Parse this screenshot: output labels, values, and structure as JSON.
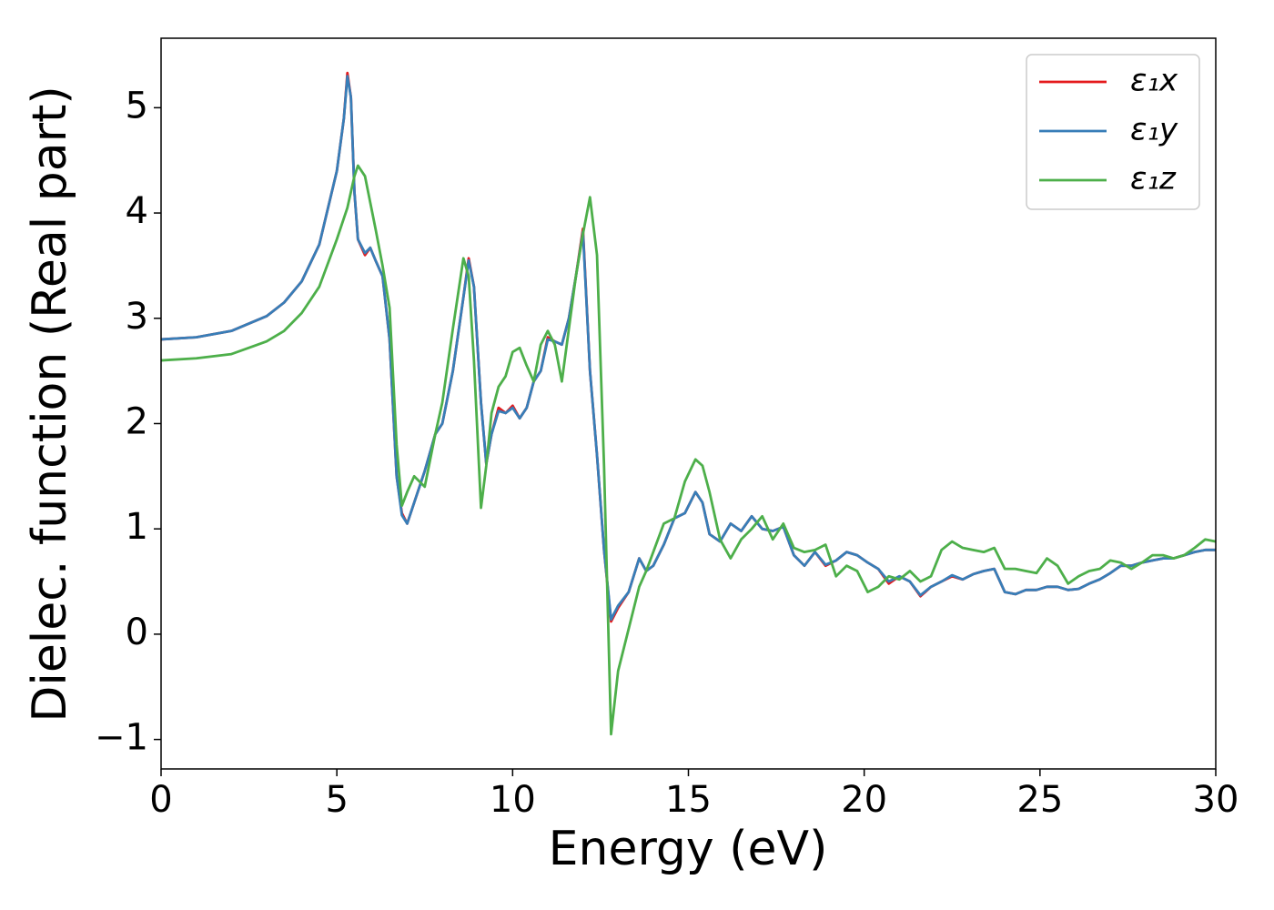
{
  "chart_data": {
    "type": "line",
    "xlabel": "Energy (eV)",
    "ylabel": "Dielec. function (Real part)",
    "x": [
      0,
      1,
      2,
      3,
      3.5,
      4,
      4.5,
      5,
      5.2,
      5.3,
      5.4,
      5.5,
      5.6,
      5.8,
      5.95,
      6.1,
      6.3,
      6.5,
      6.7,
      6.85,
      7.0,
      7.2,
      7.5,
      7.8,
      8.0,
      8.3,
      8.6,
      8.75,
      8.9,
      9.1,
      9.25,
      9.4,
      9.6,
      9.8,
      10.0,
      10.2,
      10.4,
      10.6,
      10.8,
      11.0,
      11.2,
      11.4,
      11.6,
      11.8,
      12.0,
      12.2,
      12.4,
      12.6,
      12.8,
      13.0,
      13.3,
      13.6,
      13.8,
      14.0,
      14.3,
      14.6,
      14.9,
      15.2,
      15.4,
      15.6,
      15.9,
      16.2,
      16.5,
      16.8,
      17.1,
      17.4,
      17.7,
      18.0,
      18.3,
      18.6,
      18.9,
      19.2,
      19.5,
      19.8,
      20.1,
      20.4,
      20.7,
      21.0,
      21.3,
      21.6,
      21.9,
      22.2,
      22.5,
      22.8,
      23.1,
      23.4,
      23.7,
      24.0,
      24.3,
      24.6,
      24.9,
      25.2,
      25.5,
      25.8,
      26.1,
      26.4,
      26.7,
      27.0,
      27.3,
      27.6,
      27.9,
      28.2,
      28.5,
      28.8,
      29.1,
      29.4,
      29.7,
      30.0
    ],
    "series": [
      {
        "name": "ε₁x",
        "color": "#e41a1c",
        "values": [
          2.8,
          2.82,
          2.88,
          3.02,
          3.15,
          3.35,
          3.7,
          4.4,
          4.9,
          5.33,
          5.1,
          4.2,
          3.75,
          3.6,
          3.67,
          3.55,
          3.4,
          2.8,
          1.5,
          1.15,
          1.05,
          1.25,
          1.55,
          1.9,
          2.0,
          2.5,
          3.2,
          3.57,
          3.3,
          2.2,
          1.62,
          1.9,
          2.15,
          2.1,
          2.17,
          2.05,
          2.15,
          2.4,
          2.5,
          2.82,
          2.78,
          2.75,
          3.0,
          3.4,
          3.85,
          2.5,
          1.7,
          0.8,
          0.12,
          0.25,
          0.4,
          0.72,
          0.6,
          0.65,
          0.85,
          1.1,
          1.15,
          1.35,
          1.25,
          0.95,
          0.88,
          1.05,
          0.98,
          1.12,
          1.0,
          0.98,
          1.02,
          0.75,
          0.65,
          0.78,
          0.65,
          0.7,
          0.78,
          0.75,
          0.68,
          0.62,
          0.48,
          0.55,
          0.5,
          0.36,
          0.45,
          0.5,
          0.55,
          0.52,
          0.57,
          0.6,
          0.62,
          0.4,
          0.38,
          0.42,
          0.42,
          0.45,
          0.45,
          0.42,
          0.43,
          0.48,
          0.52,
          0.58,
          0.65,
          0.65,
          0.68,
          0.7,
          0.72,
          0.72,
          0.75,
          0.78,
          0.8,
          0.8
        ]
      },
      {
        "name": "ε₁y",
        "color": "#377eb8",
        "values": [
          2.8,
          2.82,
          2.88,
          3.02,
          3.15,
          3.35,
          3.7,
          4.4,
          4.9,
          5.3,
          5.1,
          4.2,
          3.75,
          3.62,
          3.67,
          3.55,
          3.4,
          2.8,
          1.5,
          1.13,
          1.05,
          1.25,
          1.55,
          1.9,
          2.0,
          2.5,
          3.2,
          3.55,
          3.3,
          2.2,
          1.62,
          1.9,
          2.12,
          2.1,
          2.15,
          2.05,
          2.15,
          2.4,
          2.5,
          2.8,
          2.78,
          2.75,
          3.0,
          3.4,
          3.82,
          2.5,
          1.7,
          0.8,
          0.14,
          0.27,
          0.4,
          0.72,
          0.6,
          0.65,
          0.85,
          1.1,
          1.15,
          1.35,
          1.25,
          0.95,
          0.88,
          1.05,
          0.98,
          1.12,
          1.0,
          0.98,
          1.02,
          0.75,
          0.65,
          0.78,
          0.66,
          0.7,
          0.78,
          0.75,
          0.68,
          0.62,
          0.5,
          0.55,
          0.5,
          0.37,
          0.45,
          0.5,
          0.56,
          0.52,
          0.57,
          0.6,
          0.62,
          0.4,
          0.38,
          0.42,
          0.42,
          0.45,
          0.45,
          0.42,
          0.43,
          0.48,
          0.52,
          0.58,
          0.65,
          0.65,
          0.68,
          0.7,
          0.72,
          0.72,
          0.75,
          0.78,
          0.8,
          0.8
        ]
      },
      {
        "name": "ε₁z",
        "color": "#4daf4a",
        "values": [
          2.6,
          2.62,
          2.66,
          2.78,
          2.88,
          3.05,
          3.3,
          3.75,
          3.95,
          4.05,
          4.2,
          4.35,
          4.45,
          4.35,
          4.1,
          3.85,
          3.5,
          3.1,
          1.8,
          1.22,
          1.35,
          1.5,
          1.4,
          1.9,
          2.2,
          2.9,
          3.57,
          3.4,
          2.6,
          1.2,
          1.6,
          2.1,
          2.35,
          2.45,
          2.68,
          2.72,
          2.55,
          2.4,
          2.75,
          2.88,
          2.75,
          2.4,
          2.9,
          3.4,
          3.8,
          4.15,
          3.6,
          1.6,
          -0.95,
          -0.35,
          0.05,
          0.45,
          0.6,
          0.78,
          1.05,
          1.1,
          1.45,
          1.66,
          1.6,
          1.35,
          0.9,
          0.72,
          0.9,
          1.0,
          1.12,
          0.9,
          1.05,
          0.82,
          0.78,
          0.8,
          0.85,
          0.55,
          0.65,
          0.6,
          0.4,
          0.45,
          0.55,
          0.52,
          0.6,
          0.5,
          0.55,
          0.8,
          0.88,
          0.82,
          0.8,
          0.78,
          0.82,
          0.62,
          0.62,
          0.6,
          0.58,
          0.72,
          0.65,
          0.48,
          0.55,
          0.6,
          0.62,
          0.7,
          0.68,
          0.62,
          0.68,
          0.75,
          0.75,
          0.72,
          0.75,
          0.82,
          0.9,
          0.88
        ]
      }
    ],
    "xlim": [
      0,
      30
    ],
    "xticks": [
      0,
      5,
      10,
      15,
      20,
      25,
      30
    ],
    "ylim": [
      -1.28,
      5.66
    ],
    "yticks": [
      {
        "value": -1,
        "label": "−1"
      },
      0,
      1,
      2,
      3,
      4,
      5
    ],
    "legend": "upper right",
    "grid": false
  }
}
